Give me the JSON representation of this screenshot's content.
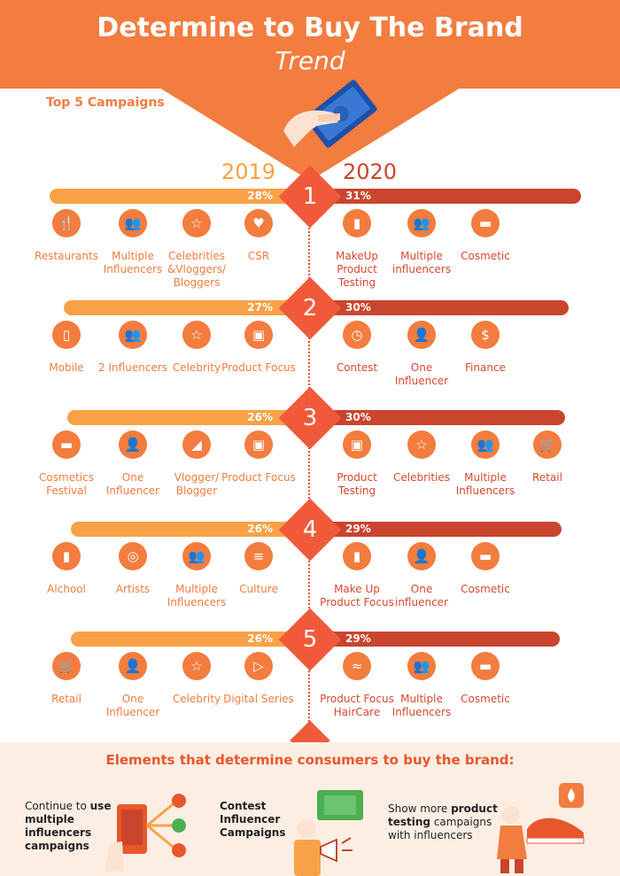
{
  "header": {
    "title": "Determine to Buy The Brand",
    "subtitle": "Trend"
  },
  "section_label": "Top 5 Campaigns",
  "years": {
    "left": "2019",
    "right": "2020"
  },
  "colors": {
    "orange": "#f9a146",
    "red": "#c9452e",
    "accent": "#f37c3f",
    "rank": "#f05a3a",
    "left_text": "#f37c3f",
    "right_text": "#d9482f"
  },
  "ranks": [
    {
      "number": "1",
      "left_pct": "28%",
      "right_pct": "31%",
      "left_items": [
        {
          "icon": "restaurant-icon",
          "label": "Restaurants"
        },
        {
          "icon": "group-icon",
          "label": "Multiple Influencers"
        },
        {
          "icon": "star-icon",
          "label": "Celebrities &Vloggers/ Bloggers"
        },
        {
          "icon": "heart-icon",
          "label": "CSR"
        }
      ],
      "right_items": [
        {
          "icon": "lipstick-icon",
          "label": "MakeUp Product Testing"
        },
        {
          "icon": "group-icon",
          "label": "Multiple influencers"
        },
        {
          "icon": "cosmetic-icon",
          "label": "Cosmetic"
        }
      ]
    },
    {
      "number": "2",
      "left_pct": "27%",
      "right_pct": "30%",
      "left_items": [
        {
          "icon": "mobile-icon",
          "label": "Mobile"
        },
        {
          "icon": "two-people-icon",
          "label": "2 Influencers"
        },
        {
          "icon": "star-icon",
          "label": "Celebrity"
        },
        {
          "icon": "box-icon",
          "label": "Product Focus"
        }
      ],
      "right_items": [
        {
          "icon": "stopwatch-icon",
          "label": "Contest"
        },
        {
          "icon": "person-icon",
          "label": "One Influencer"
        },
        {
          "icon": "money-bag-icon",
          "label": "Finance"
        }
      ]
    },
    {
      "number": "3",
      "left_pct": "26%",
      "right_pct": "30%",
      "left_items": [
        {
          "icon": "cosmetic-icon",
          "label": "Cosmetics Festival"
        },
        {
          "icon": "person-icon",
          "label": "One Influencer"
        },
        {
          "icon": "presenter-icon",
          "label": "Vlogger/ Blogger"
        },
        {
          "icon": "box-icon",
          "label": "Product Focus"
        }
      ],
      "right_items": [
        {
          "icon": "box-icon",
          "label": "Product Testing"
        },
        {
          "icon": "star-icon",
          "label": "Celebrities"
        },
        {
          "icon": "group-icon",
          "label": "Multiple Influencers"
        },
        {
          "icon": "cart-icon",
          "label": "Retail"
        }
      ]
    },
    {
      "number": "4",
      "left_pct": "26%",
      "right_pct": "29%",
      "left_items": [
        {
          "icon": "bottle-icon",
          "label": "Alchool"
        },
        {
          "icon": "palette-icon",
          "label": "Artists"
        },
        {
          "icon": "group-icon",
          "label": "Multiple Influencers"
        },
        {
          "icon": "pillar-icon",
          "label": "Culture"
        }
      ],
      "right_items": [
        {
          "icon": "lipstick-icon",
          "label": "Make Up Product Focus"
        },
        {
          "icon": "person-icon",
          "label": "One influencer"
        },
        {
          "icon": "cosmetic-icon",
          "label": "Cosmetic"
        }
      ]
    },
    {
      "number": "5",
      "left_pct": "26%",
      "right_pct": "29%",
      "left_items": [
        {
          "icon": "cart-icon",
          "label": "Retail"
        },
        {
          "icon": "person-icon",
          "label": "One Influencer"
        },
        {
          "icon": "star-icon",
          "label": "Celebrity"
        },
        {
          "icon": "play-icon",
          "label": "Digital Series"
        }
      ],
      "right_items": [
        {
          "icon": "hair-icon",
          "label": "Product Focus HairCare"
        },
        {
          "icon": "group-icon",
          "label": "Multiple Influencers"
        },
        {
          "icon": "cosmetic-icon",
          "label": "Cosmetic"
        }
      ]
    }
  ],
  "bottom": {
    "title": "Elements that determine consumers to buy the brand:",
    "elements": [
      {
        "pre": "Continue to ",
        "bold": "use multiple influencers campaigns",
        "post": ""
      },
      {
        "pre": "",
        "bold": "Contest Influencer Campaigns",
        "post": ""
      },
      {
        "pre": "Show more ",
        "bold": "product testing",
        "post": " campaigns with influencers"
      }
    ]
  }
}
